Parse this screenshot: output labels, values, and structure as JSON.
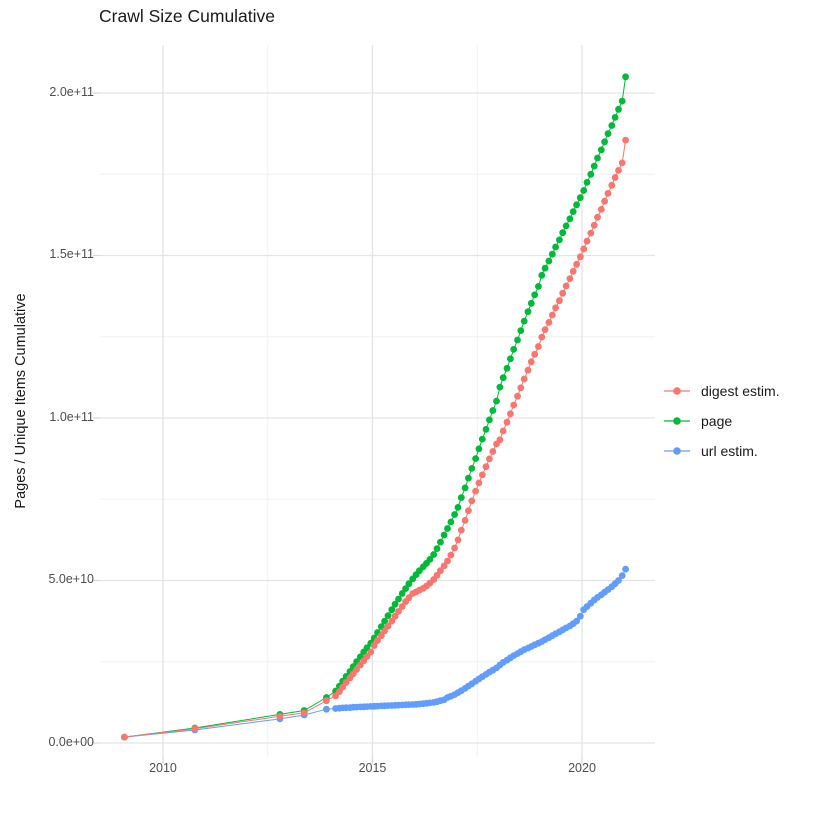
{
  "title": "Crawl Size Cumulative",
  "y_axis_title": "Pages / Unique Items Cumulative",
  "legend": {
    "items": [
      {
        "label": "digest estim.",
        "color": "#F8766D"
      },
      {
        "label": "page",
        "color": "#00BA38"
      },
      {
        "label": "url estim.",
        "color": "#619CFF"
      }
    ]
  },
  "colors": {
    "background": "#ffffff",
    "grid_major": "#e3e3e3",
    "grid_minor": "#f0f0f0",
    "tick_mark": "#d8d8d8",
    "tick_text": "#4d4d4d",
    "text": "#1a1a1a"
  },
  "chart_data": {
    "type": "scatter+line",
    "title": "Crawl Size Cumulative",
    "xlabel": "",
    "ylabel": "Pages / Unique Items Cumulative",
    "legend_position": "right",
    "grid": "major+minor",
    "value_unit": 1000000000.0,
    "value_unit_note": "series values are billions of pages / items",
    "x_axis": {
      "range": [
        2008.497,
        2021.742
      ],
      "ticks": [
        2010,
        2015,
        2020
      ],
      "labels": [
        "2010",
        "2015",
        "2020"
      ],
      "minor": [
        2012.5,
        2017.5
      ]
    },
    "y_axis": {
      "range": [
        -4310000000.0,
        214770000000.0
      ],
      "ticks": [
        0,
        50000000000.0,
        100000000000.0,
        150000000000.0,
        200000000000.0
      ],
      "labels": [
        "0.0e+00",
        "5.0e+10",
        "1.0e+11",
        "1.5e+11",
        "2.0e+11"
      ],
      "minor": [
        25000000000.0,
        75000000000.0,
        125000000000.0,
        175000000000.0
      ]
    },
    "x": [
      2009.08,
      2010.76,
      2012.79,
      2013.37,
      2013.9,
      2014.12,
      2014.21,
      2014.29,
      2014.37,
      2014.46,
      2014.54,
      2014.62,
      2014.71,
      2014.79,
      2014.87,
      2014.96,
      2015.04,
      2015.12,
      2015.21,
      2015.29,
      2015.37,
      2015.46,
      2015.54,
      2015.62,
      2015.71,
      2015.79,
      2015.87,
      2015.96,
      2016.04,
      2016.12,
      2016.21,
      2016.29,
      2016.37,
      2016.46,
      2016.54,
      2016.62,
      2016.71,
      2016.79,
      2016.87,
      2016.96,
      2017.04,
      2017.12,
      2017.21,
      2017.29,
      2017.37,
      2017.46,
      2017.54,
      2017.62,
      2017.71,
      2017.79,
      2017.87,
      2017.96,
      2018.04,
      2018.12,
      2018.21,
      2018.29,
      2018.37,
      2018.46,
      2018.54,
      2018.62,
      2018.71,
      2018.79,
      2018.87,
      2018.96,
      2019.04,
      2019.12,
      2019.21,
      2019.29,
      2019.37,
      2019.46,
      2019.54,
      2019.62,
      2019.71,
      2019.79,
      2019.87,
      2019.96,
      2020.04,
      2020.12,
      2020.21,
      2020.29,
      2020.37,
      2020.46,
      2020.54,
      2020.62,
      2020.71,
      2020.79,
      2020.87,
      2020.96,
      2021.04
    ],
    "series": [
      {
        "name": "digest estim.",
        "color": "#F8766D",
        "values": [
          1.8,
          4.4,
          8.2,
          9.3,
          13,
          14.5,
          15.8,
          17.2,
          18.6,
          20,
          21.3,
          22.6,
          24,
          25.3,
          26.6,
          28,
          30,
          31.5,
          33,
          34.5,
          36,
          37.5,
          39,
          40.5,
          42,
          43.5,
          44.7,
          46,
          46.5,
          47,
          47.6,
          48.3,
          49.2,
          50.3,
          51.6,
          53,
          54.5,
          56,
          57.8,
          60,
          62.5,
          65.5,
          68.5,
          71.5,
          74.5,
          77.5,
          80,
          82.5,
          85,
          87.4,
          89.7,
          92,
          93.3,
          96,
          98.7,
          101.3,
          104,
          106.7,
          109.3,
          112,
          114.7,
          117.3,
          119.6,
          122,
          124.9,
          127.2,
          129.4,
          131.7,
          133.9,
          136.1,
          138.4,
          140.6,
          142.9,
          145.1,
          147.3,
          149.6,
          152,
          154.4,
          156.9,
          159.3,
          161.8,
          164.2,
          166.7,
          169.1,
          171.6,
          174,
          176.2,
          178.5,
          185.5
        ]
      },
      {
        "name": "page",
        "color": "#00BA38",
        "values": [
          1.8,
          4.6,
          8.8,
          10,
          14,
          16,
          17.5,
          19,
          20.5,
          22,
          23.5,
          25,
          26.5,
          28,
          29.3,
          30.7,
          32.3,
          34,
          35.8,
          37.5,
          39.2,
          41,
          42.7,
          44.3,
          46,
          47.5,
          49,
          50.5,
          51.8,
          53,
          54.2,
          55.3,
          56.5,
          58,
          59.8,
          61.8,
          64,
          66,
          68,
          70.3,
          72.5,
          75.5,
          78.5,
          81.5,
          84.5,
          87.5,
          90.5,
          93.5,
          96.5,
          99.4,
          102.3,
          105.2,
          109.5,
          112.4,
          115.3,
          118.2,
          121.1,
          124,
          126.9,
          129.8,
          132.7,
          135.3,
          137.9,
          140.5,
          143.9,
          146.1,
          148.3,
          150.4,
          152.6,
          154.8,
          157,
          159.1,
          161.3,
          163.5,
          165.6,
          167.8,
          170,
          172.5,
          175,
          177.5,
          180,
          182.5,
          185,
          187.5,
          190,
          192.5,
          195,
          197.5,
          205
        ]
      },
      {
        "name": "url estim.",
        "color": "#619CFF",
        "values": [
          1.8,
          4,
          7.4,
          8.6,
          10.4,
          10.6,
          10.7,
          10.8,
          10.85,
          10.9,
          11,
          11.05,
          11.1,
          11.15,
          11.2,
          11.25,
          11.3,
          11.35,
          11.4,
          11.45,
          11.5,
          11.55,
          11.6,
          11.65,
          11.7,
          11.75,
          11.8,
          11.85,
          11.9,
          12,
          12.1,
          12.2,
          12.35,
          12.5,
          12.7,
          13,
          13.3,
          14,
          14.4,
          14.9,
          15.5,
          16.1,
          16.8,
          17.5,
          18.2,
          19,
          19.7,
          20.4,
          21.1,
          21.8,
          22.4,
          23.1,
          24,
          24.8,
          25.5,
          26.2,
          26.9,
          27.5,
          28.1,
          28.7,
          29.2,
          29.7,
          30.2,
          30.7,
          31.2,
          31.8,
          32.4,
          33,
          33.6,
          34.2,
          34.8,
          35.4,
          36,
          36.7,
          37.5,
          39,
          41,
          42,
          43,
          44,
          44.8,
          45.6,
          46.4,
          47.2,
          48.1,
          49,
          50,
          51.5,
          53.5
        ]
      }
    ]
  }
}
